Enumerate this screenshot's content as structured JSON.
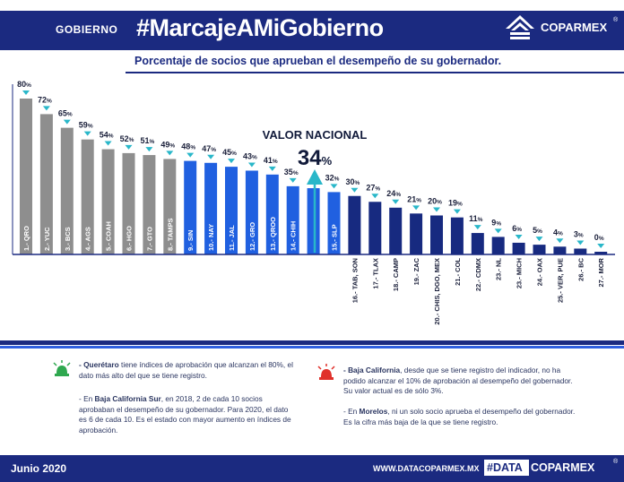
{
  "header": {
    "section": "GOBIERNO",
    "hashtag": "#MarcajeAMiGobierno",
    "brand": "COPARMEX",
    "reg_mark": "®",
    "subtitle": "Porcentaje de socios que aprueban el desempeño de su gobernador."
  },
  "chart_data": {
    "type": "bar",
    "categories": [
      "1.- QRO",
      "2.- YUC",
      "3.- BCS",
      "4.- AGS",
      "5.- COAH",
      "6.- HGO",
      "7.- GTO",
      "8.- TAMPS",
      "9.- SIN",
      "10.- NAY",
      "11.- JAL",
      "12.- GRO",
      "13.- QROO",
      "14.- CHIH",
      "",
      "15.- SLP",
      "16.- TAB, SON",
      "17.- TLAX",
      "18.- CAMP",
      "19.- ZAC",
      "20.- CHIS, DGO, MEX",
      "21.- COL",
      "22.- CDMX",
      "23.- NL",
      "23.- MICH",
      "24.- OAX",
      "25.- VER, PUE",
      "26.- BC",
      "27.- MOR"
    ],
    "values": [
      80,
      72,
      65,
      59,
      54,
      52,
      51,
      49,
      48,
      47,
      45,
      43,
      41,
      35,
      34,
      32,
      30,
      27,
      24,
      21,
      20,
      19,
      11,
      9,
      6,
      5,
      4,
      3,
      0
    ],
    "value_labels": [
      "80",
      "72",
      "65",
      "59",
      "54",
      "52",
      "51",
      "49",
      "48",
      "47",
      "45",
      "43",
      "41",
      "35",
      "",
      "32",
      "30",
      "27",
      "24",
      "21",
      "20",
      "19",
      "11",
      "9",
      "6",
      "5",
      "4",
      "3",
      "0"
    ],
    "percent_sign": "%",
    "groups": [
      "top",
      "top",
      "top",
      "top",
      "top",
      "top",
      "top",
      "top",
      "mid",
      "mid",
      "mid",
      "mid",
      "mid",
      "mid",
      "mid",
      "mid",
      "low",
      "low",
      "low",
      "low",
      "low",
      "low",
      "low",
      "low",
      "low",
      "low",
      "low",
      "low",
      "low"
    ],
    "colors": {
      "top": "#8e8e8e",
      "mid": "#2060e0",
      "low": "#172a80",
      "marker": "#29b7c9"
    },
    "national": {
      "label": "VALOR NACIONAL",
      "value": "34",
      "unit": "%"
    },
    "ylim": [
      0,
      80
    ],
    "title": "Porcentaje de socios que aprueban el desempeño de su gobernador."
  },
  "notes": {
    "left_1_bold": "- Querétaro",
    "left_1_rest": " tiene índices de aprobación que alcanzan el 80%, el dato más alto del que se tiene registro.",
    "left_2_pre": "- En ",
    "left_2_bold": "Baja California Sur",
    "left_2_rest": ", en 2018, 2 de cada 10 socios aprobaban el desempeño de su gobernador. Para 2020, el dato es 6 de cada 10. Es el estado con mayor aumento en índices de aprobación.",
    "right_1_bold": "- Baja California",
    "right_1_rest": ", desde que se tiene registro del indicador, no ha podido alcanzar el 10% de aprobación al desempeño del gobernador. Su valor actual es de sólo 3%.",
    "right_2_pre": "- En ",
    "right_2_bold": "Morelos",
    "right_2_rest": ", ni un solo socio aprueba el desempeño del gobernador. Es la cifra más baja de la que se tiene registro."
  },
  "footer": {
    "date": "Junio 2020",
    "url": "WWW.DATACOPARMEX.MX",
    "tag": "#DATA",
    "brand": "COPARMEX",
    "reg_mark": "®"
  },
  "icons": {
    "brand_logo": "coparmex-logo-icon",
    "green_light": "green-siren-icon",
    "red_light": "red-siren-icon",
    "national_arrow": "up-arrow-icon",
    "value_marker": "chevron-down-icon"
  }
}
